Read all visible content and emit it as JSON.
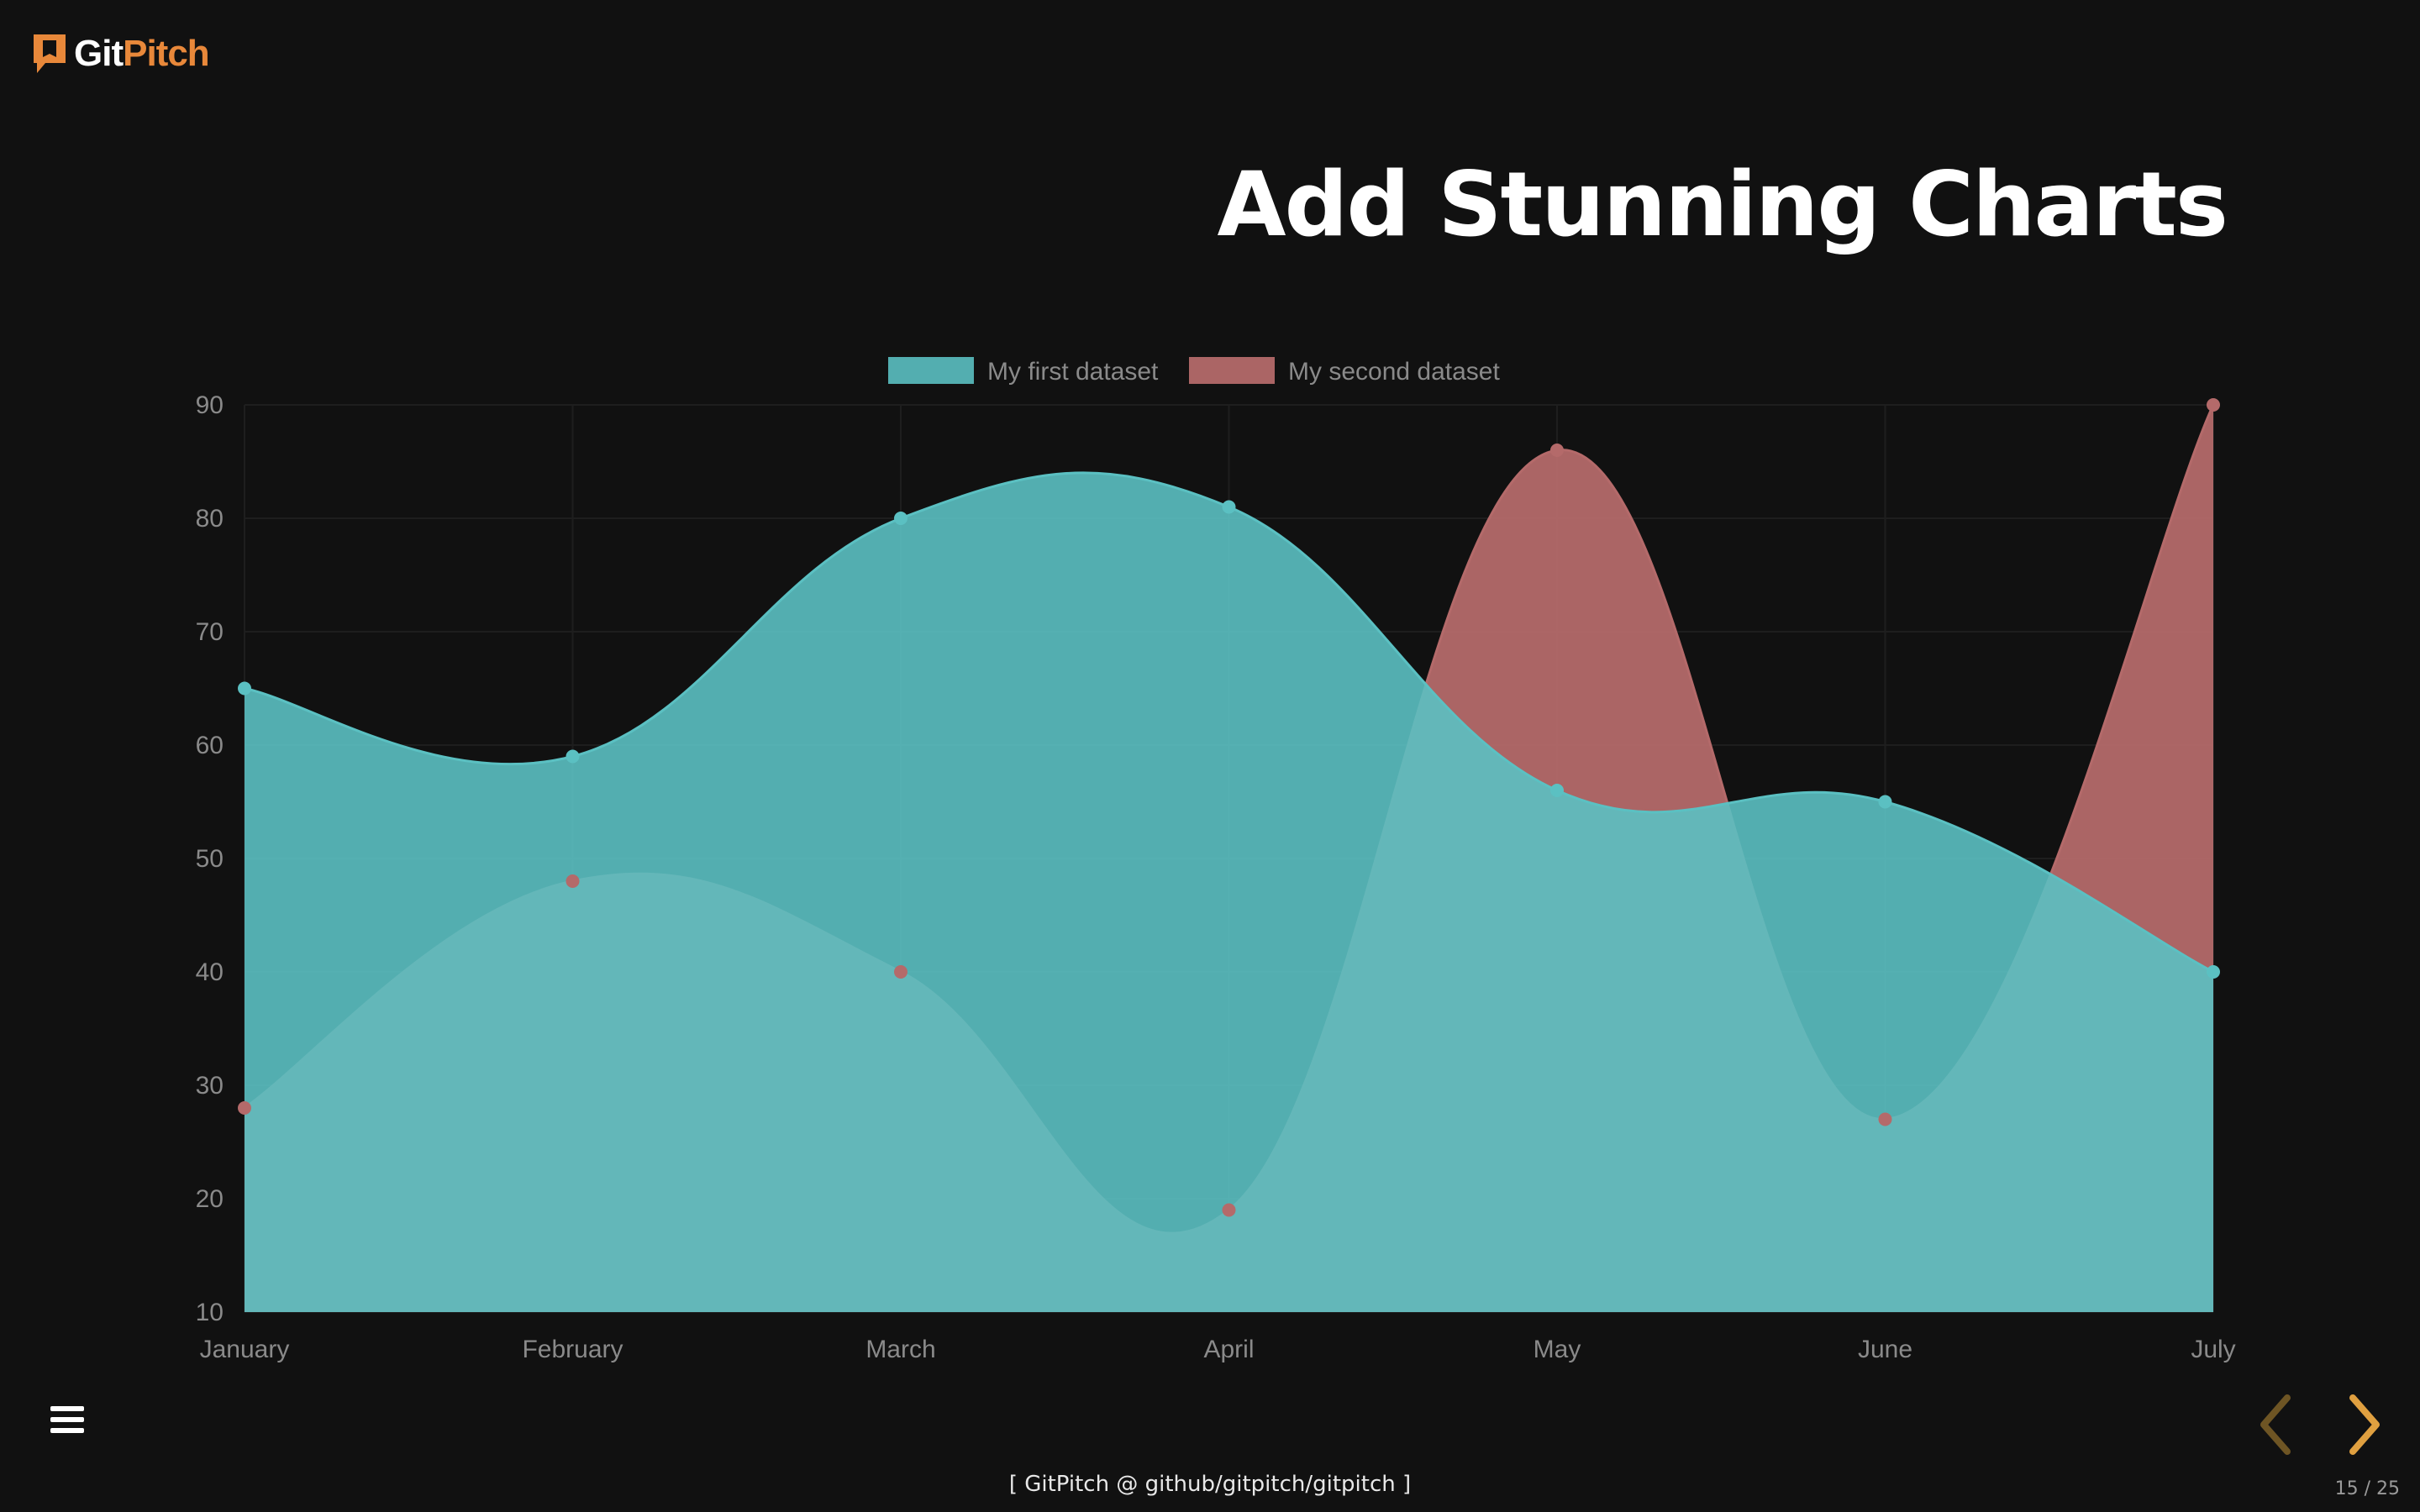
{
  "brand": {
    "logo_git": "Git",
    "logo_pitch": "Pitch"
  },
  "slide": {
    "title": "Add Stunning Charts",
    "footer": "[ GitPitch @ github/gitpitch/gitpitch ]",
    "counter": "15 / 25"
  },
  "colors": {
    "background": "#111111",
    "series1": "#5bc0c2",
    "series2": "#b46a6a",
    "accent": "#e8883a",
    "nav_arrow": "#e0a040"
  },
  "icons": {
    "menu": "hamburger-menu-icon",
    "prev": "chevron-left-icon",
    "next": "chevron-right-icon"
  },
  "chart_data": {
    "type": "area",
    "title": "",
    "xlabel": "",
    "ylabel": "",
    "categories": [
      "January",
      "February",
      "March",
      "April",
      "May",
      "June",
      "July"
    ],
    "series": [
      {
        "name": "My first dataset",
        "color": "#5bc0c2",
        "values": [
          65,
          59,
          80,
          81,
          56,
          55,
          40
        ]
      },
      {
        "name": "My second dataset",
        "color": "#b46a6a",
        "values": [
          28,
          48,
          40,
          19,
          86,
          27,
          90
        ]
      }
    ],
    "ylim": [
      10,
      90
    ],
    "yticks": [
      10,
      20,
      30,
      40,
      50,
      60,
      70,
      80,
      90
    ],
    "grid": true,
    "legend": "top-center",
    "curve": "smooth"
  }
}
